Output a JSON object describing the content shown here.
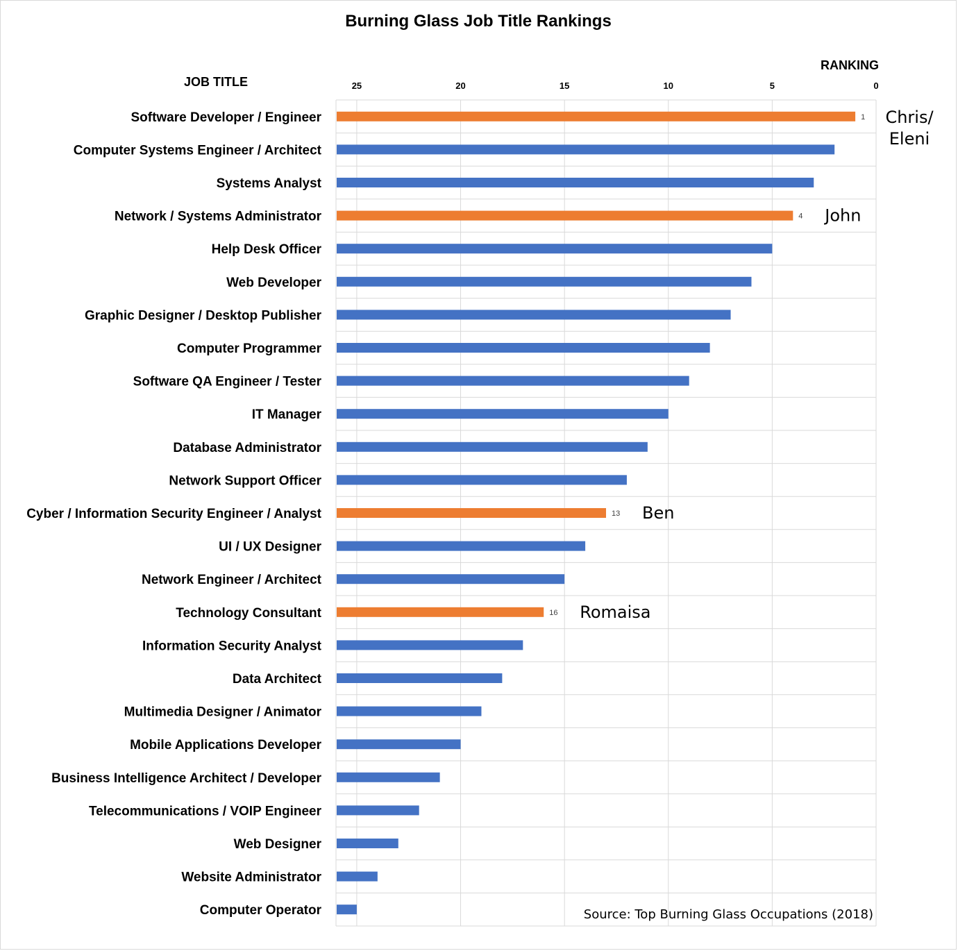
{
  "chart_data": {
    "type": "bar",
    "orientation": "horizontal",
    "title": "Burning Glass Job Title Rankings",
    "category_axis_title": "JOB TITLE",
    "value_axis_title": "RANKING",
    "value_axis": {
      "min": 0,
      "max": 26,
      "reversed": true,
      "ticks": [
        25,
        20,
        15,
        10,
        5,
        0
      ]
    },
    "grid": true,
    "colors": {
      "default": "#4472c4",
      "highlight": "#ed7d31"
    },
    "categories": [
      "Software Developer / Engineer",
      "Computer Systems Engineer / Architect",
      "Systems Analyst",
      "Network /  Systems Administrator",
      "Help Desk Officer",
      "Web Developer",
      "Graphic Designer / Desktop Publisher",
      "Computer Programmer",
      "Software QA Engineer / Tester",
      "IT Manager",
      "Database Administrator",
      "Network Support Officer",
      "Cyber / Information Security Engineer / Analyst",
      "UI / UX Designer",
      "Network Engineer / Architect",
      "Technology Consultant",
      "Information Security Analyst",
      "Data Architect",
      "Multimedia Designer / Animator",
      "Mobile Applications Developer",
      "Business Intelligence Architect / Developer",
      "Telecommunications / VOIP Engineer",
      "Web Designer",
      "Website Administrator",
      "Computer Operator"
    ],
    "values": [
      1,
      2,
      3,
      4,
      5,
      6,
      7,
      8,
      9,
      10,
      11,
      12,
      13,
      14,
      15,
      16,
      17,
      18,
      19,
      20,
      21,
      22,
      23,
      24,
      25
    ],
    "highlighted": [
      {
        "category": "Software Developer / Engineer",
        "value_label": "1",
        "annotation": [
          "Chris/",
          "Eleni"
        ]
      },
      {
        "category": "Network /  Systems Administrator",
        "value_label": "4",
        "annotation": [
          "John"
        ]
      },
      {
        "category": "Cyber / Information Security Engineer / Analyst",
        "value_label": "13",
        "annotation": [
          "Ben"
        ]
      },
      {
        "category": "Technology Consultant",
        "value_label": "16",
        "annotation": [
          "Romaisa"
        ]
      }
    ],
    "source": "Source: Top Burning Glass Occupations (2018)"
  }
}
